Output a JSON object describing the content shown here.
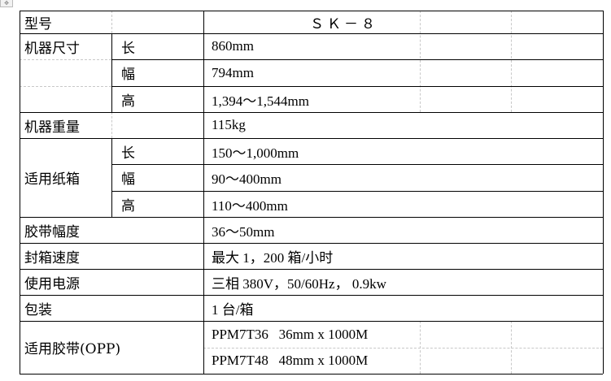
{
  "table": {
    "rows": [
      {
        "label": "型号",
        "sub": "",
        "value": "ＳＫ－８"
      },
      {
        "label": "机器尺寸",
        "sub": "长",
        "value": "860mm"
      },
      {
        "label": "",
        "sub": "幅",
        "value": "794mm"
      },
      {
        "label": "",
        "sub": "高",
        "value": "1,394～1,544mm"
      },
      {
        "label": "机器重量",
        "sub": "",
        "value": "115kg"
      },
      {
        "label": "适用纸箱",
        "sub": "长",
        "value": "150～1,000mm"
      },
      {
        "label": "",
        "sub": "幅",
        "value": "90～400mm"
      },
      {
        "label": "",
        "sub": "高",
        "value": "110～400mm"
      },
      {
        "label": "胶带幅度",
        "sub": "",
        "value": "36～50mm"
      },
      {
        "label": "封箱速度",
        "sub": "",
        "value": "最大 1，200 箱/小时"
      },
      {
        "label": "使用电源",
        "sub": "",
        "value": "三相 380V，50/60Hz， 0.9kw"
      },
      {
        "label": "包装",
        "sub": "",
        "value": "1 台/箱"
      },
      {
        "label": "适用胶带(OPP)",
        "sub": "",
        "value": "PPM7T36   36mm x 1000M"
      },
      {
        "label": "",
        "sub": "",
        "value": "PPM7T48   48mm x 1000M"
      }
    ]
  }
}
